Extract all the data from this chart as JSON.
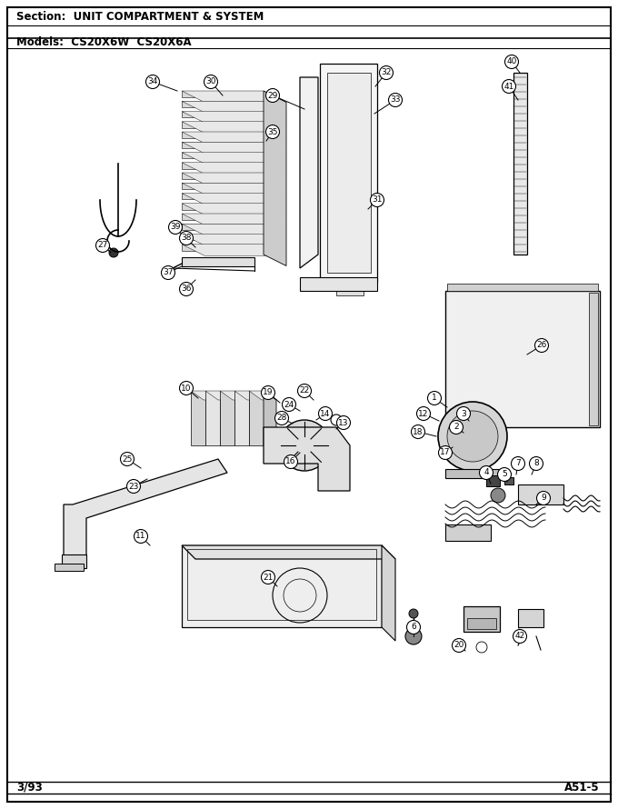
{
  "title_section": "Section:  UNIT COMPARTMENT & SYSTEM",
  "models_line": "Models:  CS20X6W  CS20X6A",
  "footer_left": "3/93",
  "footer_right": "A51-5",
  "bg_color": "#ffffff",
  "figsize": [
    6.8,
    8.9
  ],
  "dpi": 100
}
